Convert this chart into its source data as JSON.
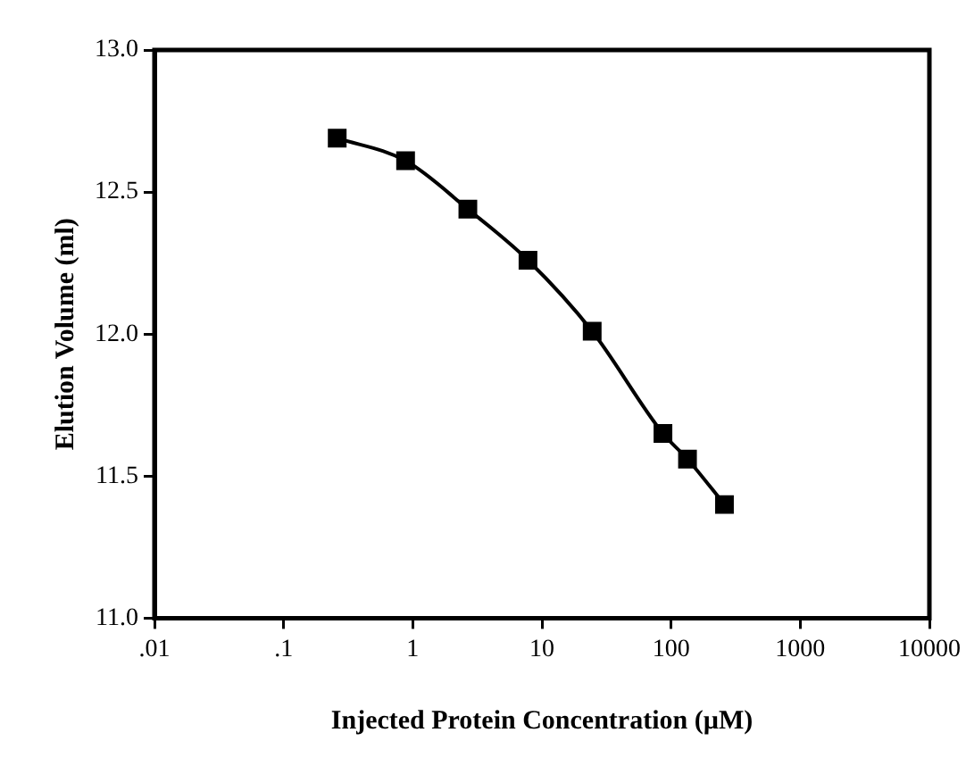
{
  "chart_data": {
    "type": "line",
    "xlabel": "Injected Protein Concentration (µM)",
    "ylabel": "Elution Volume (ml)",
    "log": "x",
    "x": [
      0.26,
      0.88,
      2.67,
      7.8,
      24.5,
      86.5,
      134,
      259
    ],
    "series": [
      {
        "color": "#000000",
        "values": [
          12.69,
          12.61,
          12.44,
          12.26,
          12.01,
          11.65,
          11.56,
          11.4
        ]
      }
    ],
    "xlim": [
      0.01,
      10000
    ],
    "xticks": [
      {
        "value": 0.01,
        "label": ".01"
      },
      {
        "value": 0.1,
        "label": ".1"
      },
      1,
      10,
      100,
      1000,
      10000
    ],
    "ylim": [
      11,
      13
    ],
    "yticks": [
      {
        "value": 11,
        "label": "11.0"
      },
      {
        "value": 11.5,
        "label": "11.5"
      },
      {
        "value": 12,
        "label": "12.0"
      },
      {
        "value": 12.5,
        "label": "12.5"
      },
      {
        "value": 13,
        "label": "13.0"
      }
    ],
    "grid": false,
    "legend": false,
    "marker": "square",
    "line_style": "solid"
  }
}
